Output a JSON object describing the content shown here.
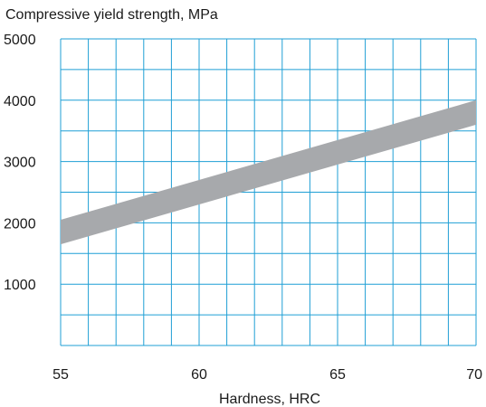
{
  "chart_data": {
    "type": "area",
    "title": "Compressive yield strength, MPa",
    "xlabel": "Hardness, HRC",
    "ylabel": "",
    "xlim": [
      55,
      70
    ],
    "ylim": [
      0,
      5000
    ],
    "x_ticks": [
      55,
      60,
      65,
      70
    ],
    "y_ticks": [
      1000,
      2000,
      3000,
      4000,
      5000
    ],
    "grid": true,
    "grid_x_step": 1,
    "grid_y_step": 500,
    "series": [
      {
        "x": [
          55,
          70
        ],
        "upper": [
          2050,
          4000
        ],
        "lower": [
          1650,
          3600
        ]
      }
    ],
    "colors": {
      "band": "#a7a9ac",
      "grid": "#1f9fd5",
      "text": "#1a1a1a"
    }
  }
}
